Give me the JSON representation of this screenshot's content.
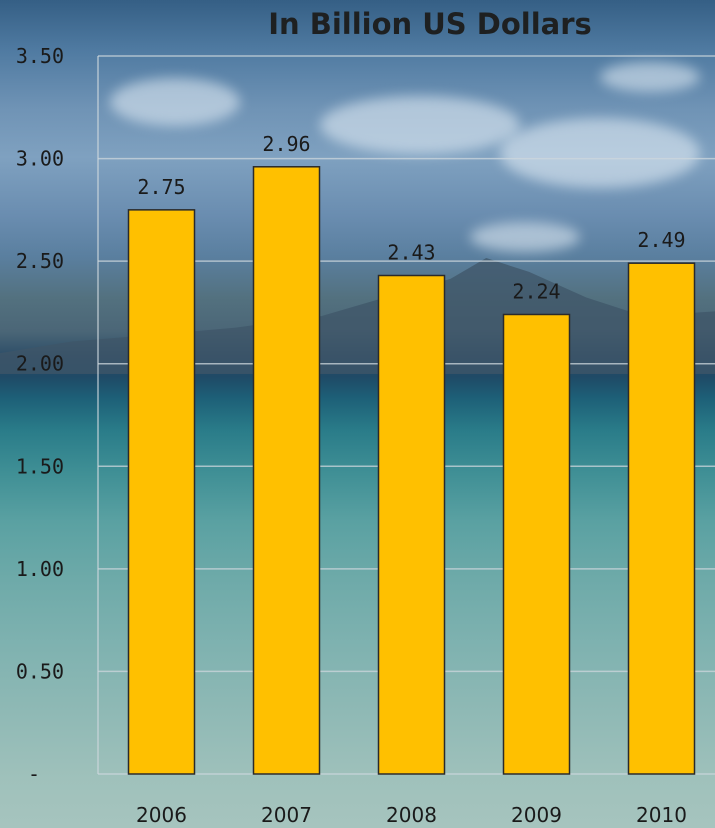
{
  "chart_data": {
    "type": "bar",
    "title": "In Billion US Dollars",
    "categories": [
      "2006",
      "2007",
      "2008",
      "2009",
      "2010"
    ],
    "values": [
      2.75,
      2.96,
      2.43,
      2.24,
      2.49
    ],
    "value_labels": [
      "2.75",
      "2.96",
      "2.43",
      "2.24",
      "2.49"
    ],
    "ylim": [
      0,
      3.5
    ],
    "yticks": [
      0,
      0.5,
      1.0,
      1.5,
      2.0,
      2.5,
      3.0,
      3.5
    ],
    "ytick_labels": [
      "-",
      "0.50",
      "1.00",
      "1.50",
      "2.00",
      "2.50",
      "3.00",
      "3.50"
    ],
    "grid": true,
    "bar_color": "#ffc000",
    "bar_edge_color": "#2a2a2a"
  }
}
